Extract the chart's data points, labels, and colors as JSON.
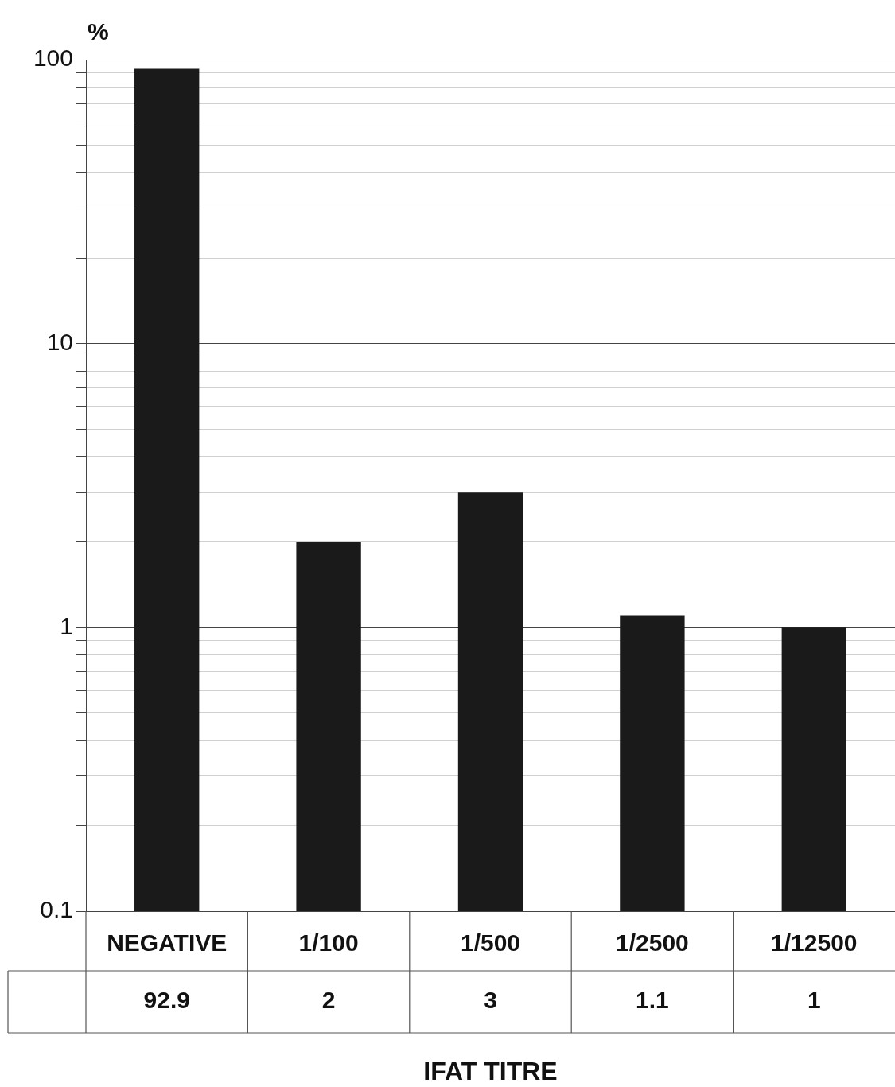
{
  "chart_data": {
    "type": "bar",
    "ylabel": "%",
    "xlabel": "IFAT TITRE",
    "categories": [
      "NEGATIVE",
      "1/100",
      "1/500",
      "1/2500",
      "1/12500"
    ],
    "values": [
      92.9,
      2,
      3,
      1.1,
      1
    ],
    "color": "#1a1a1a",
    "log": true,
    "grid": "y",
    "data_labels": true,
    "legend": false,
    "ylim": [
      0.1,
      100
    ],
    "yticks": [
      0.1,
      {
        "value": 0.2,
        "label": null
      },
      {
        "value": 0.3,
        "label": null
      },
      {
        "value": 0.4,
        "label": null
      },
      {
        "value": 0.5,
        "label": null
      },
      {
        "value": 0.6,
        "label": null
      },
      {
        "value": 0.7,
        "label": null
      },
      {
        "value": 0.8,
        "label": null
      },
      {
        "value": 0.9,
        "label": null
      },
      1,
      {
        "value": 2,
        "label": null
      },
      {
        "value": 3,
        "label": null
      },
      {
        "value": 4,
        "label": null
      },
      {
        "value": 5,
        "label": null
      },
      {
        "value": 6,
        "label": null
      },
      {
        "value": 7,
        "label": null
      },
      {
        "value": 8,
        "label": null
      },
      {
        "value": 9,
        "label": null
      },
      10,
      {
        "value": 20,
        "label": null
      },
      {
        "value": 30,
        "label": null
      },
      {
        "value": 40,
        "label": null
      },
      {
        "value": 50,
        "label": null
      },
      {
        "value": 60,
        "label": null
      },
      {
        "value": 70,
        "label": null
      },
      {
        "value": 80,
        "label": null
      },
      {
        "value": 90,
        "label": null
      },
      100
    ]
  }
}
